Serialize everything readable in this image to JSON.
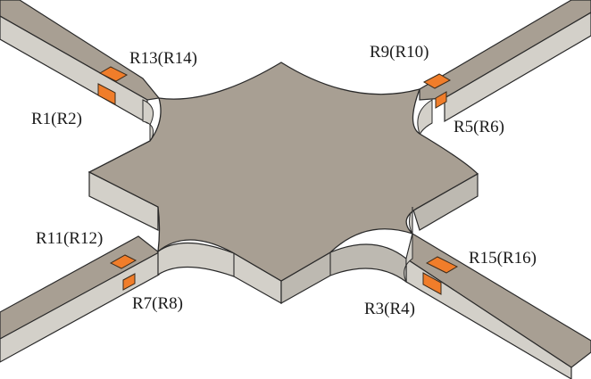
{
  "figure": {
    "colors": {
      "top_face": "#a89f93",
      "side_face": "#d3d0c9",
      "side_face_dark": "#bdb9b1",
      "edge": "#2a2a2a",
      "gauge_fill": "#f07d2a",
      "gauge_stroke": "#3a2a1a",
      "background": "#ffffff"
    },
    "labels": {
      "top_left_upper": "R13(R14)",
      "top_left_lower": "R1(R2)",
      "top_right_upper": "R9(R10)",
      "top_right_lower": "R5(R6)",
      "bottom_left_upper": "R11(R12)",
      "bottom_left_lower": "R7(R8)",
      "bottom_right_upper": "R15(R16)",
      "bottom_right_lower": "R3(R4)"
    }
  }
}
